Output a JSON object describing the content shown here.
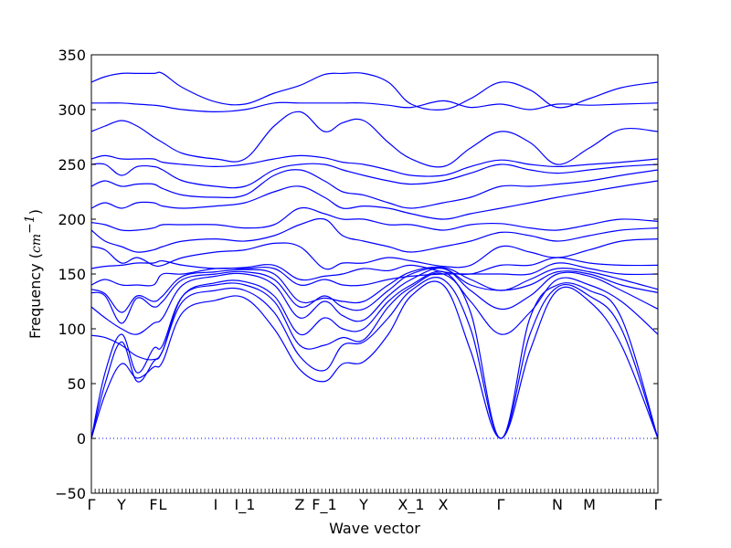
{
  "chart_data": {
    "type": "line",
    "title": "",
    "xlabel": "Wave vector",
    "ylabel": "Frequency (",
    "ylabel_unit": "cm",
    "ylabel_exp": "−1",
    "ylabel_close": ")",
    "ylim": [
      -50,
      350
    ],
    "yticks": [
      -50,
      0,
      50,
      100,
      150,
      200,
      250,
      300,
      350
    ],
    "ytick_labels": [
      "−50",
      "0",
      "50",
      "100",
      "150",
      "200",
      "250",
      "300",
      "350"
    ],
    "xlim": [
      0,
      6.2
    ],
    "high_symmetry_points": [
      {
        "label": "Γ",
        "x": 0.0
      },
      {
        "label": "Y",
        "x": 0.33
      },
      {
        "label": "F",
        "x": 0.68
      },
      {
        "label": "L",
        "x": 0.78
      },
      {
        "label": "I",
        "x": 1.36
      },
      {
        "label": "I_1",
        "x": 1.68
      },
      {
        "label": "Z",
        "x": 2.28
      },
      {
        "label": "F_1",
        "x": 2.55
      },
      {
        "label": "Y",
        "x": 2.98
      },
      {
        "label": "X_1",
        "x": 3.5
      },
      {
        "label": "X",
        "x": 3.85
      },
      {
        "label": "Γ",
        "x": 4.48
      },
      {
        "label": "N",
        "x": 5.1
      },
      {
        "label": "M",
        "x": 5.45
      },
      {
        "label": "Γ",
        "x": 6.2
      }
    ],
    "zero_line": {
      "y": 0,
      "color": "#0000ff",
      "style": "dotted"
    },
    "series_color": "#0000ff",
    "grid": false,
    "legend": "none",
    "band_x": [
      0.0,
      0.15,
      0.33,
      0.5,
      0.68,
      0.78,
      1.0,
      1.36,
      1.68,
      2.0,
      2.28,
      2.55,
      2.75,
      2.98,
      3.25,
      3.5,
      3.85,
      4.15,
      4.48,
      4.8,
      5.1,
      5.45,
      5.8,
      6.2
    ],
    "series": [
      {
        "values": [
          0,
          40,
          68,
          55,
          65,
          70,
          115,
          126,
          128,
          100,
          63,
          52,
          68,
          70,
          95,
          130,
          140,
          80,
          0,
          80,
          135,
          125,
          85,
          0
        ]
      },
      {
        "values": [
          0,
          50,
          88,
          52,
          70,
          80,
          125,
          135,
          135,
          115,
          75,
          62,
          85,
          88,
          110,
          135,
          145,
          100,
          0,
          95,
          138,
          130,
          100,
          0
        ]
      },
      {
        "values": [
          0,
          60,
          95,
          60,
          82,
          85,
          130,
          140,
          140,
          125,
          85,
          85,
          92,
          90,
          120,
          138,
          150,
          115,
          0,
          110,
          140,
          135,
          110,
          0
        ]
      },
      {
        "values": [
          94,
          92,
          85,
          75,
          72,
          80,
          130,
          142,
          143,
          130,
          95,
          110,
          100,
          100,
          125,
          140,
          152,
          125,
          95,
          115,
          145,
          140,
          125,
          95
        ]
      },
      {
        "values": [
          120,
          110,
          100,
          95,
          105,
          110,
          140,
          148,
          150,
          140,
          110,
          125,
          112,
          108,
          130,
          145,
          155,
          135,
          118,
          130,
          150,
          148,
          135,
          118
        ]
      },
      {
        "values": [
          133,
          130,
          105,
          128,
          120,
          125,
          145,
          150,
          152,
          145,
          120,
          130,
          120,
          118,
          135,
          150,
          155,
          140,
          135,
          140,
          152,
          150,
          140,
          133
        ]
      },
      {
        "values": [
          136,
          132,
          115,
          130,
          125,
          130,
          148,
          152,
          154,
          150,
          125,
          128,
          125,
          125,
          140,
          152,
          156,
          145,
          135,
          145,
          155,
          152,
          145,
          136
        ]
      },
      {
        "values": [
          140,
          145,
          140,
          140,
          140,
          150,
          150,
          155,
          155,
          155,
          140,
          145,
          140,
          140,
          145,
          148,
          150,
          150,
          150,
          150,
          160,
          155,
          150,
          150
        ]
      },
      {
        "values": [
          155,
          157,
          158,
          160,
          160,
          162,
          158,
          155,
          156,
          158,
          145,
          148,
          150,
          155,
          153,
          158,
          152,
          150,
          158,
          158,
          165,
          160,
          158,
          158
        ]
      },
      {
        "values": [
          175,
          172,
          160,
          165,
          158,
          158,
          165,
          170,
          172,
          178,
          175,
          155,
          160,
          160,
          165,
          162,
          157,
          158,
          175,
          170,
          165,
          172,
          180,
          182
        ]
      },
      {
        "values": [
          190,
          180,
          175,
          170,
          172,
          175,
          180,
          182,
          180,
          185,
          195,
          200,
          185,
          180,
          175,
          170,
          175,
          180,
          188,
          185,
          180,
          185,
          190,
          192
        ]
      },
      {
        "values": [
          197,
          195,
          190,
          190,
          192,
          195,
          195,
          195,
          192,
          195,
          210,
          205,
          200,
          200,
          195,
          195,
          190,
          195,
          196,
          192,
          190,
          195,
          200,
          198
        ]
      },
      {
        "values": [
          210,
          215,
          210,
          215,
          215,
          212,
          210,
          212,
          215,
          225,
          230,
          220,
          210,
          212,
          210,
          205,
          200,
          205,
          210,
          215,
          220,
          225,
          230,
          235
        ]
      },
      {
        "values": [
          230,
          235,
          230,
          232,
          232,
          228,
          222,
          220,
          222,
          240,
          245,
          235,
          225,
          222,
          215,
          210,
          215,
          220,
          230,
          230,
          232,
          235,
          240,
          245
        ]
      },
      {
        "values": [
          250,
          250,
          240,
          248,
          248,
          245,
          235,
          230,
          230,
          245,
          250,
          250,
          245,
          240,
          235,
          232,
          235,
          242,
          250,
          245,
          242,
          245,
          248,
          250
        ]
      },
      {
        "values": [
          255,
          258,
          255,
          255,
          255,
          252,
          250,
          248,
          250,
          255,
          258,
          256,
          252,
          250,
          245,
          240,
          240,
          248,
          254,
          250,
          248,
          250,
          252,
          255
        ]
      },
      {
        "values": [
          280,
          285,
          290,
          285,
          275,
          270,
          260,
          255,
          255,
          285,
          298,
          280,
          288,
          290,
          270,
          255,
          248,
          265,
          280,
          270,
          250,
          265,
          282,
          280
        ]
      },
      {
        "values": [
          306,
          306,
          306,
          305,
          304,
          303,
          300,
          298,
          300,
          306,
          306,
          306,
          306,
          306,
          304,
          302,
          308,
          302,
          305,
          300,
          305,
          304,
          305,
          306
        ]
      },
      {
        "values": [
          325,
          330,
          333,
          333,
          333,
          333,
          320,
          307,
          305,
          315,
          322,
          332,
          333,
          333,
          325,
          305,
          300,
          310,
          325,
          318,
          302,
          310,
          320,
          325
        ]
      }
    ]
  }
}
